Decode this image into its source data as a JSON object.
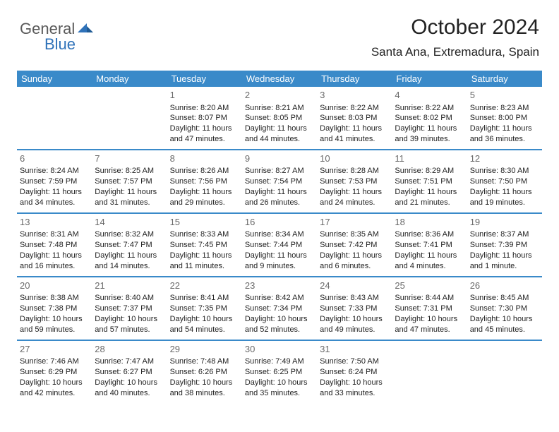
{
  "logo": {
    "text_general": "General",
    "text_blue": "Blue"
  },
  "header": {
    "month_title": "October 2024",
    "location": "Santa Ana, Extremadura, Spain"
  },
  "colors": {
    "header_bg": "#3a8ac9",
    "header_text": "#ffffff",
    "cell_border": "#3a8ac9",
    "daynum": "#6a6a6a",
    "body_text": "#222222",
    "logo_gray": "#5a5a5a",
    "logo_blue": "#2f72b9"
  },
  "weekdays": [
    "Sunday",
    "Monday",
    "Tuesday",
    "Wednesday",
    "Thursday",
    "Friday",
    "Saturday"
  ],
  "weeks": [
    [
      null,
      null,
      {
        "n": "1",
        "sr": "8:20 AM",
        "ss": "8:07 PM",
        "dl": "11 hours and 47 minutes."
      },
      {
        "n": "2",
        "sr": "8:21 AM",
        "ss": "8:05 PM",
        "dl": "11 hours and 44 minutes."
      },
      {
        "n": "3",
        "sr": "8:22 AM",
        "ss": "8:03 PM",
        "dl": "11 hours and 41 minutes."
      },
      {
        "n": "4",
        "sr": "8:22 AM",
        "ss": "8:02 PM",
        "dl": "11 hours and 39 minutes."
      },
      {
        "n": "5",
        "sr": "8:23 AM",
        "ss": "8:00 PM",
        "dl": "11 hours and 36 minutes."
      }
    ],
    [
      {
        "n": "6",
        "sr": "8:24 AM",
        "ss": "7:59 PM",
        "dl": "11 hours and 34 minutes."
      },
      {
        "n": "7",
        "sr": "8:25 AM",
        "ss": "7:57 PM",
        "dl": "11 hours and 31 minutes."
      },
      {
        "n": "8",
        "sr": "8:26 AM",
        "ss": "7:56 PM",
        "dl": "11 hours and 29 minutes."
      },
      {
        "n": "9",
        "sr": "8:27 AM",
        "ss": "7:54 PM",
        "dl": "11 hours and 26 minutes."
      },
      {
        "n": "10",
        "sr": "8:28 AM",
        "ss": "7:53 PM",
        "dl": "11 hours and 24 minutes."
      },
      {
        "n": "11",
        "sr": "8:29 AM",
        "ss": "7:51 PM",
        "dl": "11 hours and 21 minutes."
      },
      {
        "n": "12",
        "sr": "8:30 AM",
        "ss": "7:50 PM",
        "dl": "11 hours and 19 minutes."
      }
    ],
    [
      {
        "n": "13",
        "sr": "8:31 AM",
        "ss": "7:48 PM",
        "dl": "11 hours and 16 minutes."
      },
      {
        "n": "14",
        "sr": "8:32 AM",
        "ss": "7:47 PM",
        "dl": "11 hours and 14 minutes."
      },
      {
        "n": "15",
        "sr": "8:33 AM",
        "ss": "7:45 PM",
        "dl": "11 hours and 11 minutes."
      },
      {
        "n": "16",
        "sr": "8:34 AM",
        "ss": "7:44 PM",
        "dl": "11 hours and 9 minutes."
      },
      {
        "n": "17",
        "sr": "8:35 AM",
        "ss": "7:42 PM",
        "dl": "11 hours and 6 minutes."
      },
      {
        "n": "18",
        "sr": "8:36 AM",
        "ss": "7:41 PM",
        "dl": "11 hours and 4 minutes."
      },
      {
        "n": "19",
        "sr": "8:37 AM",
        "ss": "7:39 PM",
        "dl": "11 hours and 1 minute."
      }
    ],
    [
      {
        "n": "20",
        "sr": "8:38 AM",
        "ss": "7:38 PM",
        "dl": "10 hours and 59 minutes."
      },
      {
        "n": "21",
        "sr": "8:40 AM",
        "ss": "7:37 PM",
        "dl": "10 hours and 57 minutes."
      },
      {
        "n": "22",
        "sr": "8:41 AM",
        "ss": "7:35 PM",
        "dl": "10 hours and 54 minutes."
      },
      {
        "n": "23",
        "sr": "8:42 AM",
        "ss": "7:34 PM",
        "dl": "10 hours and 52 minutes."
      },
      {
        "n": "24",
        "sr": "8:43 AM",
        "ss": "7:33 PM",
        "dl": "10 hours and 49 minutes."
      },
      {
        "n": "25",
        "sr": "8:44 AM",
        "ss": "7:31 PM",
        "dl": "10 hours and 47 minutes."
      },
      {
        "n": "26",
        "sr": "8:45 AM",
        "ss": "7:30 PM",
        "dl": "10 hours and 45 minutes."
      }
    ],
    [
      {
        "n": "27",
        "sr": "7:46 AM",
        "ss": "6:29 PM",
        "dl": "10 hours and 42 minutes."
      },
      {
        "n": "28",
        "sr": "7:47 AM",
        "ss": "6:27 PM",
        "dl": "10 hours and 40 minutes."
      },
      {
        "n": "29",
        "sr": "7:48 AM",
        "ss": "6:26 PM",
        "dl": "10 hours and 38 minutes."
      },
      {
        "n": "30",
        "sr": "7:49 AM",
        "ss": "6:25 PM",
        "dl": "10 hours and 35 minutes."
      },
      {
        "n": "31",
        "sr": "7:50 AM",
        "ss": "6:24 PM",
        "dl": "10 hours and 33 minutes."
      },
      null,
      null
    ]
  ],
  "labels": {
    "sunrise": "Sunrise: ",
    "sunset": "Sunset: ",
    "daylight": "Daylight: "
  }
}
